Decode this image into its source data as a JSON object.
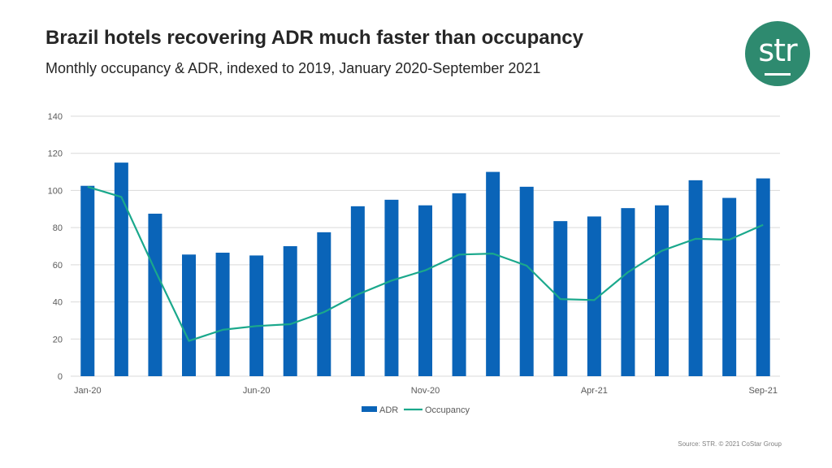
{
  "header": {
    "title": "Brazil hotels recovering ADR much faster than occupancy",
    "subtitle": "Monthly occupancy & ADR, indexed to 2019, January 2020-September 2021"
  },
  "logo": {
    "text": "str",
    "color": "#2e8a6f"
  },
  "footer": {
    "source": "Source: STR. © 2021 CoStar Group"
  },
  "chart_data": {
    "type": "bar",
    "categories": [
      "Jan-20",
      "Feb-20",
      "Mar-20",
      "Apr-20",
      "May-20",
      "Jun-20",
      "Jul-20",
      "Aug-20",
      "Sep-20",
      "Oct-20",
      "Nov-20",
      "Dec-20",
      "Jan-21",
      "Feb-21",
      "Mar-21",
      "Apr-21",
      "May-21",
      "Jun-21",
      "Jul-21",
      "Aug-21",
      "Sep-21"
    ],
    "x_tick_labels": [
      "Jan-20",
      "",
      "",
      "",
      "",
      "Jun-20",
      "",
      "",
      "",
      "",
      "Nov-20",
      "",
      "",
      "",
      "",
      "Apr-21",
      "",
      "",
      "",
      "",
      "Sep-21"
    ],
    "series": [
      {
        "name": "ADR",
        "type": "bar",
        "color": "#0a64b8",
        "values": [
          102.5,
          115,
          87.5,
          65.5,
          66.5,
          65,
          70,
          77.5,
          91.5,
          95,
          92,
          98.5,
          110,
          102,
          83.5,
          86,
          90.5,
          92,
          105.5,
          96,
          106.5
        ]
      },
      {
        "name": "Occupancy",
        "type": "line",
        "color": "#1aa88c",
        "values": [
          102,
          96.5,
          57,
          19,
          25,
          27,
          28,
          34.5,
          44,
          51.5,
          57,
          65.5,
          66,
          59.5,
          41.5,
          41,
          56,
          67.5,
          74,
          73.5,
          81.5
        ]
      }
    ],
    "ylim": [
      0,
      140
    ],
    "yticks": [
      "0",
      "20",
      "40",
      "60",
      "80",
      "100",
      "120",
      "140"
    ],
    "grid": true,
    "legend": "bottom"
  }
}
